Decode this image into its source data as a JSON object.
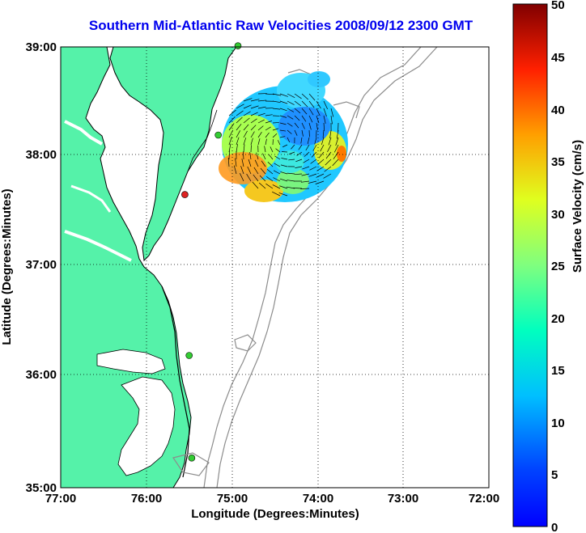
{
  "title": "Southern Mid-Atlantic Raw Velocities 2008/09/12 2300 GMT",
  "map": {
    "xlabel": "Longitude (Degrees:Minutes)",
    "ylabel": "Latitude (Degrees:Minutes)",
    "x_ticks": [
      "77:00",
      "76:00",
      "75:00",
      "74:00",
      "73:00",
      "72:00"
    ],
    "y_ticks": [
      "39:00",
      "38:00",
      "37:00",
      "36:00",
      "35:00"
    ],
    "lon_range": [
      -77,
      -72
    ],
    "lat_range": [
      35,
      39
    ],
    "grid": "dotted",
    "land_color": "#55f2a9",
    "bathymetry_color": "#8c8c8c"
  },
  "colorbar": {
    "label": "Surface Velocity (cm/s)",
    "ticks": [
      "50",
      "45",
      "40",
      "35",
      "30",
      "25",
      "20",
      "15",
      "10",
      "5",
      "0"
    ],
    "range": [
      0,
      50
    ],
    "colormap": "jet"
  },
  "sites": [
    {
      "lon": -74.93,
      "lat": 39.01,
      "color": "#33cc33"
    },
    {
      "lon": -75.16,
      "lat": 38.2,
      "color": "#33cc33"
    },
    {
      "lon": -75.55,
      "lat": 37.66,
      "color": "#dd2222"
    },
    {
      "lon": -75.5,
      "lat": 36.2,
      "color": "#33cc33"
    },
    {
      "lon": -75.47,
      "lat": 35.27,
      "color": "#33cc33"
    }
  ]
}
